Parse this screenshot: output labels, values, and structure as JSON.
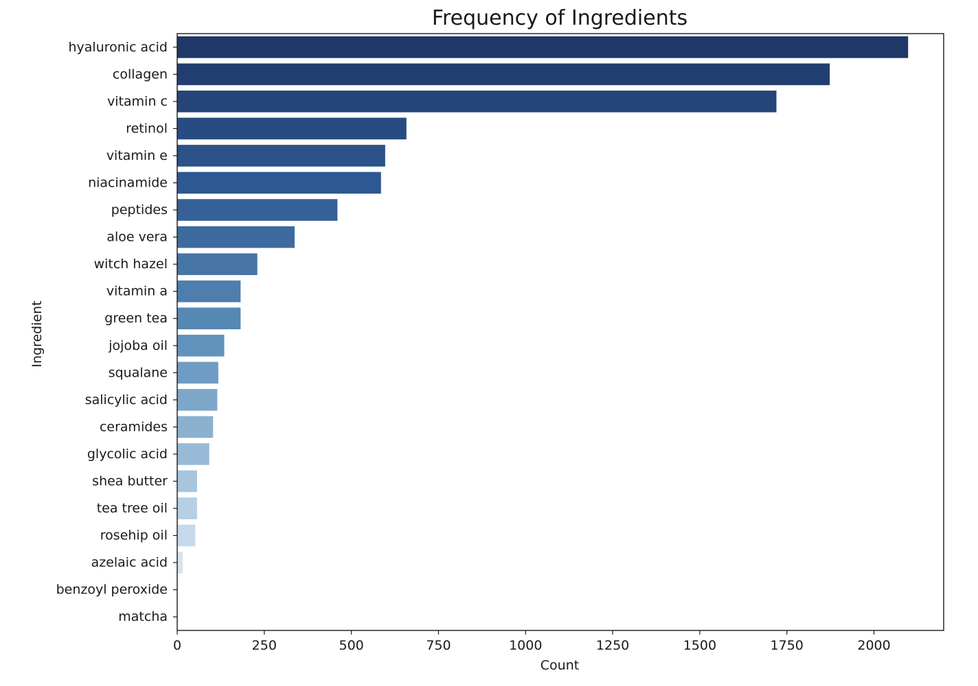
{
  "chart_data": {
    "type": "bar",
    "orientation": "horizontal",
    "title": "Frequency of Ingredients",
    "xlabel": "Count",
    "ylabel": "Ingredient",
    "xlim": [
      0,
      2200
    ],
    "xticks": [
      0,
      250,
      500,
      750,
      1000,
      1250,
      1500,
      1750,
      2000
    ],
    "grid": false,
    "legend": "none",
    "palette": "Blues_r",
    "colors": {
      "dark": "#1f3868",
      "light": "#f5f8fd",
      "axis": "#1a1a1a"
    },
    "categories": [
      "hyaluronic acid",
      "collagen",
      "vitamin c",
      "retinol",
      "vitamin e",
      "niacinamide",
      "peptides",
      "aloe vera",
      "witch hazel",
      "vitamin a",
      "green tea",
      "jojoba oil",
      "squalane",
      "salicylic acid",
      "ceramides",
      "glycolic acid",
      "shea butter",
      "tea tree oil",
      "rosehip oil",
      "azelaic acid",
      "benzoyl peroxide",
      "matcha"
    ],
    "values": [
      2098,
      1873,
      1720,
      658,
      597,
      585,
      460,
      337,
      230,
      182,
      182,
      135,
      118,
      115,
      103,
      92,
      57,
      57,
      52,
      16,
      0,
      0
    ]
  }
}
